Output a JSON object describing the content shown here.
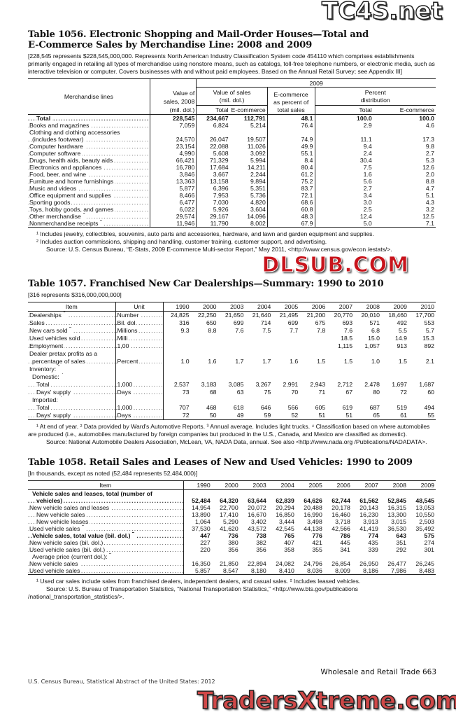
{
  "t1056": {
    "title_line1": "Table 1056. Electronic Shopping and Mail-Order Houses—Total and",
    "title_line2": "E-Commerce Sales by Merchandise Line: 2008 and 2009",
    "note": "[228,545 represents $228,545,000,000. Represents North American Industry Classification System code 454110 which comprises establishments primarily engaged in retailing all types of merchandise using nonstore means, such as catalogs, toll-free telephone numbers, or electronic media, such as interactive television or computer. Covers businesses with and without paid employees. Based on the Annual Retail Survey; see Appendix III]",
    "headers": {
      "lines": "Merchandise lines",
      "v2008a": "Value of",
      "v2008b": "sales, 2008",
      "v2008c": "(mil. dol.)",
      "year": "2009",
      "vos_a": "Value of sales",
      "vos_b": "(mil. dol.)",
      "total": "Total",
      "ecom": "E-commerce",
      "pct_a": "E-commerce",
      "pct_b": "as percent of",
      "pct_c": "total sales",
      "dist_a": "Percent",
      "dist_b": "distribution",
      "dtotal": "Total",
      "decom": "E-commerce"
    },
    "rows": [
      {
        "label": "Total",
        "bold": true,
        "indent": 2,
        "values": [
          "228,545",
          "234,667",
          "112,791",
          "48.1",
          "100.0",
          "100.0"
        ]
      },
      {
        "label": "Books and magazines",
        "values": [
          "7,059",
          "6,824",
          "5,214",
          "76.4",
          "2.9",
          "4.6"
        ]
      },
      {
        "label": "Clothing and clothing accessories",
        "nodots": true,
        "values": [
          "",
          "",
          "",
          "",
          "",
          ""
        ]
      },
      {
        "label": "(includes footwear)",
        "indent": 1,
        "values": [
          "24,570",
          "26,047",
          "19,507",
          "74.9",
          "11.1",
          "17.3"
        ]
      },
      {
        "label": "Computer hardware",
        "values": [
          "23,154",
          "22,088",
          "11,026",
          "49.9",
          "9.4",
          "9.8"
        ]
      },
      {
        "label": "Computer software",
        "values": [
          "4,990",
          "5,608",
          "3,092",
          "55.1",
          "2.4",
          "2.7"
        ]
      },
      {
        "label": "Drugs, health aids, beauty aids",
        "values": [
          "66,421",
          "71,329",
          "5,994",
          "8.4",
          "30.4",
          "5.3"
        ]
      },
      {
        "label": "Electronics and appliances",
        "values": [
          "16,780",
          "17,684",
          "14,211",
          "80.4",
          "7.5",
          "12.6"
        ]
      },
      {
        "label": "Food, beer, and wine",
        "values": [
          "3,846",
          "3,667",
          "2,244",
          "61.2",
          "1.6",
          "2.0"
        ]
      },
      {
        "label": "Furniture and home furnishings",
        "values": [
          "13,363",
          "13,158",
          "9,894",
          "75.2",
          "5.6",
          "8.8"
        ]
      },
      {
        "label": "Music and videos",
        "values": [
          "5,877",
          "6,396",
          "5,351",
          "83.7",
          "2.7",
          "4.7"
        ]
      },
      {
        "label": "Office equipment and supplies",
        "values": [
          "8,466",
          "7,953",
          "5,736",
          "72.1",
          "3.4",
          "5.1"
        ]
      },
      {
        "label": "Sporting goods",
        "values": [
          "6,477",
          "7,030",
          "4,820",
          "68.6",
          "3.0",
          "4.3"
        ]
      },
      {
        "label": "Toys, hobby goods, and games",
        "values": [
          "6,022",
          "5,926",
          "3,604",
          "60.8",
          "2.5",
          "3.2"
        ]
      },
      {
        "label": "Other merchandise",
        "sup": "1",
        "values": [
          "29,574",
          "29,167",
          "14,096",
          "48.3",
          "12.4",
          "12.5"
        ]
      },
      {
        "label": "Nonmerchandise receipts",
        "sup": "2",
        "values": [
          "11,946",
          "11,790",
          "8,002",
          "67.9",
          "5.0",
          "7.1"
        ]
      }
    ],
    "footnotes": [
      "¹ Includes jewelry, collectibles, souvenirs, auto parts and accessories, hardware, and lawn and garden equipment and supplies.",
      "² Includes auction commissions, shipping and handling, customer training, customer support, and advertising.",
      "Source: U.S. Census Bureau, “E-Stats, 2009 E-commerce Multi-sector Report,” May 2011, <http://www.census.gov/econ /estats/>."
    ]
  },
  "t1057": {
    "title": "Table 1057. Franchised New Car Dealerships—Summary: 1990 to 2010",
    "note": "[316 represents $316,000,000,000]",
    "headers": {
      "item": "Item",
      "unit": "Unit",
      "years": [
        "1990",
        "2000",
        "2003",
        "2004",
        "2005",
        "2006",
        "2007",
        "2008",
        "2009",
        "2010"
      ]
    },
    "rows": [
      {
        "label": "Dealerships",
        "sup": "1",
        "unit": "Number",
        "values": [
          "24,825",
          "22,250",
          "21,650",
          "21,640",
          "21,495",
          "21,200",
          "20,770",
          "20,010",
          "18,460",
          "17,700"
        ]
      },
      {
        "label": "Sales",
        "unit": "Bil. dol.",
        "values": [
          "316",
          "650",
          "699",
          "714",
          "699",
          "675",
          "693",
          "571",
          "492",
          "553"
        ]
      },
      {
        "label": "New cars sold",
        "sup": "2",
        "unit": "Millions",
        "values": [
          "9.3",
          "8.8",
          "7.6",
          "7.5",
          "7.7",
          "7.8",
          "7.6",
          "6.8",
          "5.5",
          "5.7"
        ]
      },
      {
        "label": "Used vehicles sold",
        "unit": "Milli",
        "values": [
          "",
          "",
          "",
          "",
          "",
          "",
          "18.5",
          "15.0",
          "14.9",
          "15.3"
        ]
      },
      {
        "label": "Employment",
        "unit": "1,00",
        "values": [
          "",
          "",
          "",
          "",
          "",
          "",
          "1,115",
          "1,057",
          "913",
          "892"
        ]
      },
      {
        "label": "Dealer pretax profits as a",
        "nodots": true,
        "unit": "",
        "values": [
          "",
          "",
          "",
          "",
          "",
          "",
          "",
          "",
          "",
          ""
        ]
      },
      {
        "label": "percentage of sales",
        "indent": 1,
        "unit": "Percent",
        "values": [
          "1.0",
          "1.6",
          "1.7",
          "1.7",
          "1.6",
          "1.5",
          "1.5",
          "1.0",
          "1.5",
          "2.1"
        ]
      },
      {
        "label": "Inventory:",
        "sup": "3",
        "nodots": true,
        "unit": "",
        "values": [
          "",
          "",
          "",
          "",
          "",
          "",
          "",
          "",
          "",
          ""
        ]
      },
      {
        "label": "Domestic:",
        "sup": "4",
        "nodots": true,
        "indent": 1,
        "unit": "",
        "values": [
          "",
          "",
          "",
          "",
          "",
          "",
          "",
          "",
          "",
          ""
        ]
      },
      {
        "label": "Total",
        "indent": 2,
        "unit": "1,000",
        "values": [
          "2,537",
          "3,183",
          "3,085",
          "3,267",
          "2,991",
          "2,943",
          "2,712",
          "2,478",
          "1,697",
          "1,687"
        ]
      },
      {
        "label": "Days' supply",
        "indent": 2,
        "unit": "Days",
        "values": [
          "73",
          "68",
          "63",
          "75",
          "70",
          "71",
          "67",
          "80",
          "72",
          "60"
        ]
      },
      {
        "label": "Imported:",
        "sup": "4",
        "nodots": true,
        "indent": 1,
        "unit": "",
        "values": [
          "",
          "",
          "",
          "",
          "",
          "",
          "",
          "",
          "",
          ""
        ]
      },
      {
        "label": "Total",
        "indent": 2,
        "unit": "1,000",
        "values": [
          "707",
          "468",
          "618",
          "646",
          "566",
          "605",
          "619",
          "687",
          "519",
          "494"
        ]
      },
      {
        "label": "Days' supply",
        "indent": 2,
        "unit": "Days",
        "values": [
          "72",
          "50",
          "49",
          "59",
          "52",
          "51",
          "51",
          "65",
          "61",
          "55"
        ]
      }
    ],
    "footnotes": [
      "¹ At end of year. ² Data provided by Ward's Automotive Reports. ³ Annual average. Includes light trucks. ⁴ Classification based on where automobiles are produced (i.e., automobiles manufactured by foreign companies but produced in the U.S., Canada, and Mexico are classified as domestic).",
      "Source: National Automobile Dealers Association, McLean, VA, NADA Data, annual. See also <http://www.nada.org /Publications/NADADATA>."
    ]
  },
  "t1058": {
    "title": "Table 1058. Retail Sales and Leases of New and Used Vehicles: 1990 to 2009",
    "note": "[In thousands, except as noted (52,484 represents 52,484,000)]",
    "headers": {
      "item": "Item",
      "years": [
        "1990",
        "2000",
        "2003",
        "2004",
        "2005",
        "2006",
        "2007",
        "2008",
        "2009"
      ]
    },
    "rows": [
      {
        "label": "Vehicle sales and leases, total (number of",
        "bold": true,
        "nodots": true,
        "indent": 1,
        "values": [
          "",
          "",
          "",
          "",
          "",
          "",
          "",
          "",
          ""
        ]
      },
      {
        "label": "vehicles)",
        "bold": true,
        "indent": 2,
        "values": [
          "52,484",
          "64,320",
          "63,644",
          "62,839",
          "64,626",
          "62,744",
          "61,562",
          "52,845",
          "48,545"
        ]
      },
      {
        "label": "New vehicle sales and leases",
        "values": [
          "14,954",
          "22,700",
          "20,072",
          "20,294",
          "20,488",
          "20,178",
          "20,143",
          "16,315",
          "13,053"
        ]
      },
      {
        "label": "New vehicle sales",
        "indent": 2,
        "values": [
          "13,890",
          "17,410",
          "16,670",
          "16,850",
          "16,990",
          "16,460",
          "16,230",
          "13,300",
          "10,550"
        ]
      },
      {
        "label": "New vehicle leases",
        "indent": 2,
        "values": [
          "1,064",
          "5,290",
          "3,402",
          "3,444",
          "3,498",
          "3,718",
          "3,913",
          "3,015",
          "2,503"
        ]
      },
      {
        "label": "Used vehicle sales",
        "sup": "1",
        "values": [
          "37,530",
          "41,620",
          "43,572",
          "42,545",
          "44,138",
          "42,566",
          "41,419",
          "36,530",
          "35,492"
        ]
      },
      {
        "label": "Vehicle sales, total value (bil. dol.)",
        "sup": "2",
        "bold": true,
        "indent": 1,
        "values": [
          "447",
          "736",
          "738",
          "765",
          "776",
          "786",
          "774",
          "643",
          "575"
        ]
      },
      {
        "label": "New vehicle sales (bil. dol.)",
        "values": [
          "227",
          "380",
          "382",
          "407",
          "421",
          "445",
          "435",
          "351",
          "274"
        ]
      },
      {
        "label": "Used vehicle sales (bil. dol.)",
        "values": [
          "220",
          "356",
          "356",
          "358",
          "355",
          "341",
          "339",
          "292",
          "301"
        ]
      },
      {
        "label": "Average price (current dol.):",
        "sup": "2",
        "nodots": true,
        "indent": 1,
        "values": [
          "",
          "",
          "",
          "",
          "",
          "",
          "",
          "",
          ""
        ]
      },
      {
        "label": "New vehicle sales",
        "values": [
          "16,350",
          "21,850",
          "22,894",
          "24,082",
          "24,796",
          "26,854",
          "26,950",
          "26,477",
          "26,245"
        ]
      },
      {
        "label": "Used vehicle sales",
        "values": [
          "5,857",
          "8,547",
          "8,180",
          "8,410",
          "8,036",
          "8,009",
          "8,186",
          "7,986",
          "8,483"
        ]
      }
    ],
    "footnotes": [
      "¹ Used car sales include sales from franchised dealers, independent dealers, and casual sales. ² Includes leased vehicles.",
      "Source: U.S. Bureau of Transportation Statistics, “National Transportation Statistics,” <http://www.bts.gov/publications /national_transportation_statistics/>."
    ]
  },
  "footer": {
    "section": "Wholesale and Retail Trade  663",
    "source": "U.S. Census Bureau, Statistical Abstract of the United States: 2012"
  },
  "watermarks": {
    "top": "TC4S.net",
    "middle": "DLSUB.COM",
    "bottom": "TradersXtreme.com"
  }
}
